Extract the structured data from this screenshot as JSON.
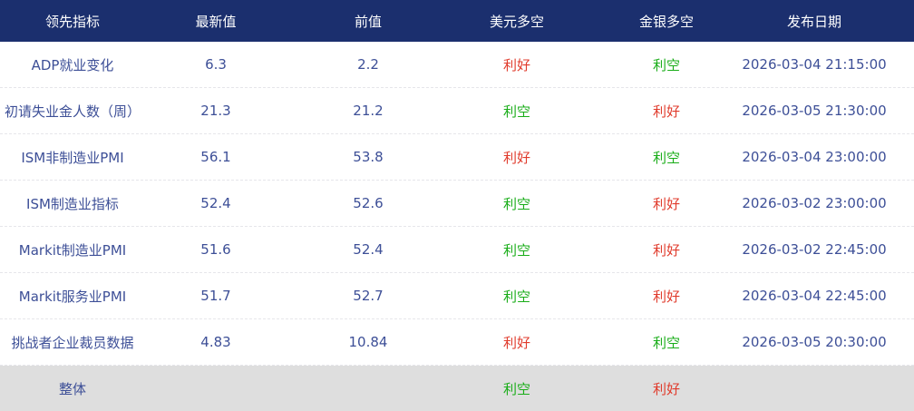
{
  "colors": {
    "header_bg": "#1b2f6e",
    "text": "#3d4f97",
    "bullish": "#e03b2c",
    "bearish": "#1aad19",
    "total_bg": "#dedede"
  },
  "headers": [
    "领先指标",
    "最新值",
    "前值",
    "美元多空",
    "金银多空",
    "发布日期"
  ],
  "rows": [
    {
      "name": "ADP就业变化",
      "latest": "6.3",
      "previous": "2.2",
      "usd": "利好",
      "gold": "利空",
      "date": "2026-03-04 21:15:00"
    },
    {
      "name": "初请失业金人数（周）",
      "latest": "21.3",
      "previous": "21.2",
      "usd": "利空",
      "gold": "利好",
      "date": "2026-03-05 21:30:00"
    },
    {
      "name": "ISM非制造业PMI",
      "latest": "56.1",
      "previous": "53.8",
      "usd": "利好",
      "gold": "利空",
      "date": "2026-03-04 23:00:00"
    },
    {
      "name": "ISM制造业指标",
      "latest": "52.4",
      "previous": "52.6",
      "usd": "利空",
      "gold": "利好",
      "date": "2026-03-02 23:00:00"
    },
    {
      "name": "Markit制造业PMI",
      "latest": "51.6",
      "previous": "52.4",
      "usd": "利空",
      "gold": "利好",
      "date": "2026-03-02 22:45:00"
    },
    {
      "name": "Markit服务业PMI",
      "latest": "51.7",
      "previous": "52.7",
      "usd": "利空",
      "gold": "利好",
      "date": "2026-03-04 22:45:00"
    },
    {
      "name": "挑战者企业裁员数据",
      "latest": "4.83",
      "previous": "10.84",
      "usd": "利好",
      "gold": "利空",
      "date": "2026-03-05 20:30:00"
    }
  ],
  "total": {
    "name": "整体",
    "usd": "利空",
    "gold": "利好"
  }
}
